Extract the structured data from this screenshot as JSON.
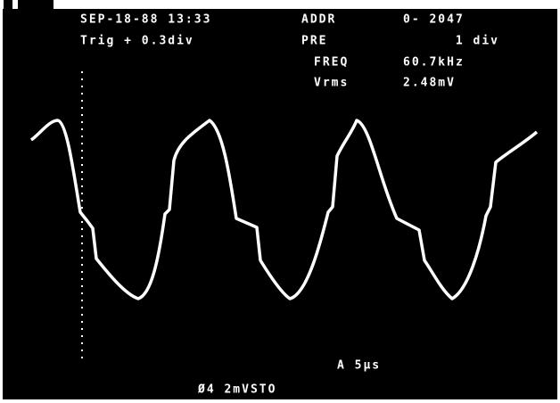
{
  "header": {
    "datetime": "SEP-18-88 13:33",
    "trigger": "Trig + 0.3div"
  },
  "readouts": [
    {
      "label": "ADDR",
      "value": "0- 2047"
    },
    {
      "label": "PRE",
      "value": "1 div"
    },
    {
      "label": "FREQ",
      "value": "60.7kHz"
    },
    {
      "label": "Vrms",
      "value": "2.48mV"
    }
  ],
  "footer": {
    "timebase": "A 5μs",
    "channel": "Ø4 2mVSTO"
  }
}
